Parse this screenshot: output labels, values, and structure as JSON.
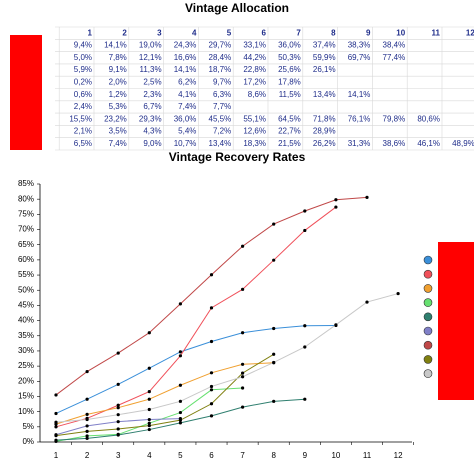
{
  "table": {
    "title": "Vintage Allocation",
    "header": [
      1,
      2,
      3,
      4,
      5,
      6,
      7,
      8,
      9,
      10,
      11,
      12
    ],
    "rows": [
      [
        "9,4%",
        "14,1%",
        "19,0%",
        "24,3%",
        "29,7%",
        "33,1%",
        "36,0%",
        "37,4%",
        "38,3%",
        "38,4%"
      ],
      [
        "5,0%",
        "7,8%",
        "12,1%",
        "16,6%",
        "28,4%",
        "44,2%",
        "50,3%",
        "59,9%",
        "69,7%",
        "77,4%"
      ],
      [
        "5,9%",
        "9,1%",
        "11,3%",
        "14,1%",
        "18,7%",
        "22,8%",
        "25,6%",
        "26,1%"
      ],
      [
        "0,2%",
        "2,0%",
        "2,5%",
        "6,2%",
        "9,7%",
        "17,2%",
        "17,8%"
      ],
      [
        "0,6%",
        "1,2%",
        "2,3%",
        "4,1%",
        "6,3%",
        "8,6%",
        "11,5%",
        "13,4%",
        "14,1%"
      ],
      [
        "2,4%",
        "5,3%",
        "6,7%",
        "7,4%",
        "7,7%"
      ],
      [
        "15,5%",
        "23,2%",
        "29,3%",
        "36,0%",
        "45,5%",
        "55,1%",
        "64,5%",
        "71,8%",
        "76,1%",
        "79,8%",
        "80,6%"
      ],
      [
        "2,1%",
        "3,5%",
        "4,3%",
        "5,4%",
        "7,2%",
        "12,6%",
        "22,7%",
        "28,9%"
      ],
      [
        "6,5%",
        "7,4%",
        "9,0%",
        "10,7%",
        "13,4%",
        "18,3%",
        "21,5%",
        "26,2%",
        "31,3%",
        "38,6%",
        "46,1%",
        "48,9%"
      ]
    ]
  },
  "chart_data": {
    "type": "line",
    "title": "Vintage Recovery Rates",
    "categories": [
      "1",
      "2",
      "3",
      "4",
      "5",
      "6",
      "7",
      "8",
      "9",
      "10",
      "11",
      "12"
    ],
    "series": [
      {
        "color": "#3a8fd9",
        "values": [
          9.4,
          14.1,
          19.0,
          24.3,
          29.7,
          33.1,
          36.0,
          37.4,
          38.3,
          38.4,
          null,
          null
        ]
      },
      {
        "color": "#f0505a",
        "values": [
          5.0,
          7.8,
          12.1,
          16.6,
          28.4,
          44.2,
          50.3,
          59.9,
          69.7,
          77.4,
          null,
          null
        ]
      },
      {
        "color": "#f0a030",
        "values": [
          5.9,
          9.1,
          11.3,
          14.1,
          18.7,
          22.8,
          25.6,
          26.1,
          null,
          null,
          null,
          null
        ]
      },
      {
        "color": "#66e070",
        "values": [
          0.2,
          2.0,
          2.5,
          6.2,
          9.7,
          17.2,
          17.8,
          null,
          null,
          null,
          null,
          null
        ]
      },
      {
        "color": "#2f7f6f",
        "values": [
          0.6,
          1.2,
          2.3,
          4.1,
          6.3,
          8.6,
          11.5,
          13.4,
          14.1,
          null,
          null,
          null
        ]
      },
      {
        "color": "#8080c8",
        "values": [
          2.4,
          5.3,
          6.7,
          7.4,
          7.7,
          null,
          null,
          null,
          null,
          null,
          null,
          null
        ]
      },
      {
        "color": "#c04848",
        "values": [
          15.5,
          23.2,
          29.3,
          36.0,
          45.5,
          55.1,
          64.5,
          71.8,
          76.1,
          79.8,
          80.6,
          null
        ]
      },
      {
        "color": "#808010",
        "values": [
          2.1,
          3.5,
          4.3,
          5.4,
          7.2,
          12.6,
          22.7,
          28.9,
          null,
          null,
          null,
          null
        ]
      },
      {
        "color": "#c8c8c8",
        "values": [
          6.5,
          7.4,
          9.0,
          10.7,
          13.4,
          18.3,
          21.5,
          26.2,
          31.3,
          38.6,
          46.1,
          48.9
        ]
      }
    ],
    "ylim": [
      0,
      85
    ],
    "yticks": [
      {
        "value": 0,
        "label": "0%"
      },
      {
        "value": 5,
        "label": "5%"
      },
      {
        "value": 10,
        "label": "10%"
      },
      {
        "value": 15,
        "label": "15%"
      },
      {
        "value": 20,
        "label": "20%"
      },
      {
        "value": 25,
        "label": "25%"
      },
      {
        "value": 30,
        "label": "30%"
      },
      {
        "value": 35,
        "label": "35%"
      },
      {
        "value": 40,
        "label": "40%"
      },
      {
        "value": 45,
        "label": "45%"
      },
      {
        "value": 50,
        "label": "50%"
      },
      {
        "value": 55,
        "label": "55%"
      },
      {
        "value": 60,
        "label": "60%"
      },
      {
        "value": 65,
        "label": "65%"
      },
      {
        "value": 70,
        "label": "70%"
      },
      {
        "value": 75,
        "label": "75%"
      },
      {
        "value": 80,
        "label": "80%"
      },
      {
        "value": 85,
        "label": "85%"
      }
    ]
  }
}
